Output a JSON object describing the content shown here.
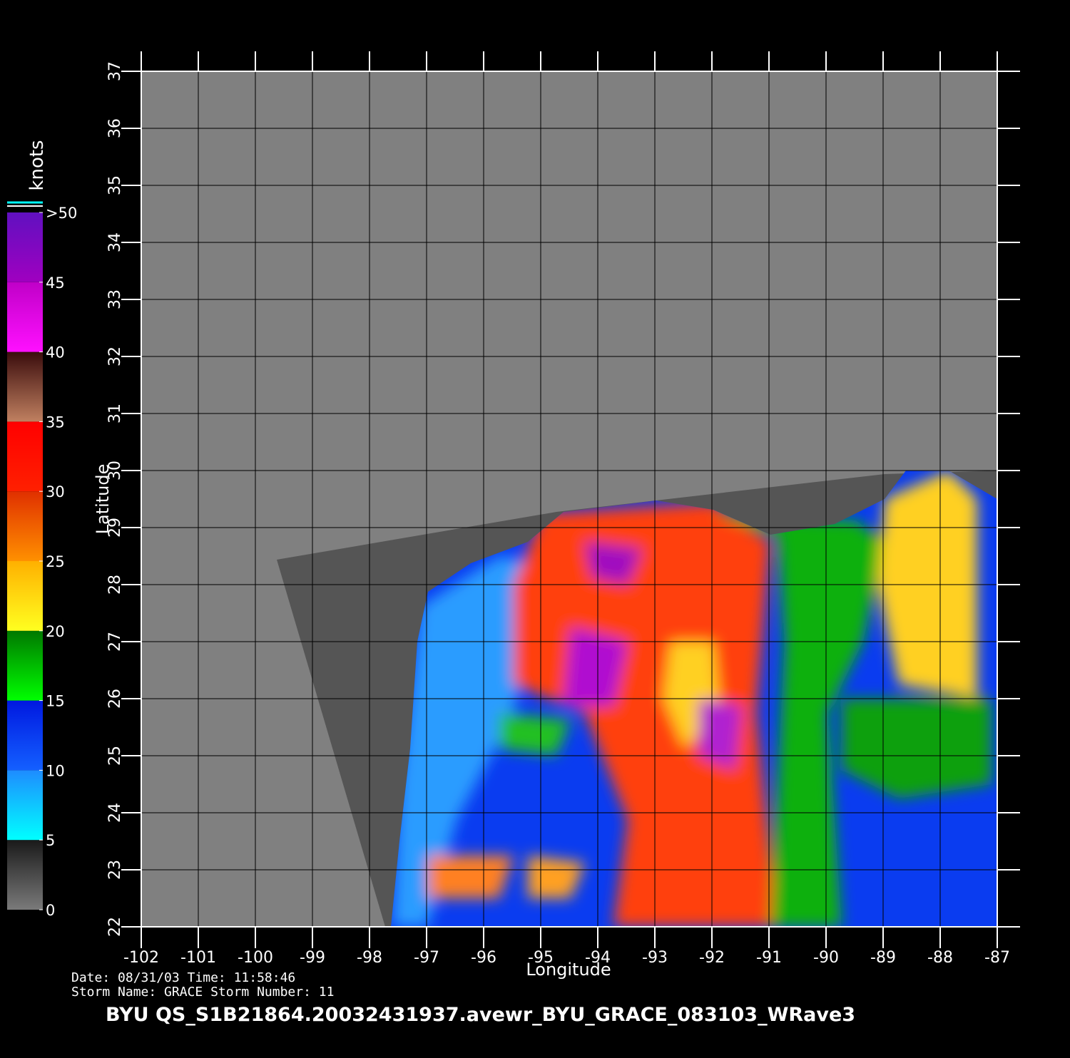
{
  "map": {
    "title": "BYU  QS_S1B21864.20032431937.avewr_BYU_GRACE_083103_WRave3",
    "x_label": "Longitude",
    "y_label": "Latitude",
    "xlim": [
      -102,
      -87
    ],
    "ylim": [
      22,
      37
    ],
    "xticks": [
      -102,
      -101,
      -100,
      -99,
      -98,
      -97,
      -96,
      -95,
      -94,
      -93,
      -92,
      -91,
      -90,
      -89,
      -88,
      -87
    ],
    "yticks": [
      22,
      23,
      24,
      25,
      26,
      27,
      28,
      29,
      30,
      31,
      32,
      33,
      34,
      35,
      36,
      37
    ],
    "grid": true,
    "colorbar": {
      "unit": "knots",
      "ticks": [
        0,
        5,
        10,
        15,
        20,
        25,
        30,
        35,
        40,
        45,
        {
          "value": 50,
          "label": ">50"
        }
      ],
      "segment_colors": [
        [
          "#7a7a7a",
          "#1a1a1a"
        ],
        [
          "#00ffff",
          "#1e8cff"
        ],
        [
          "#1460ff",
          "#0018e0"
        ],
        [
          "#00ff00",
          "#007800"
        ],
        [
          "#ffff20",
          "#ffb000"
        ],
        [
          "#ff9000",
          "#e03000"
        ],
        [
          "#ff2000",
          "#ff0000"
        ],
        [
          "#c08060",
          "#3a0c0c"
        ],
        [
          "#ff10ff",
          "#c000c8"
        ],
        [
          "#a000c0",
          "#6010c0"
        ]
      ]
    },
    "info": [
      "Date: 08/31/03   Time: 11:58:46",
      "Storm  Name: GRACE   Storm  Number: 11"
    ]
  }
}
